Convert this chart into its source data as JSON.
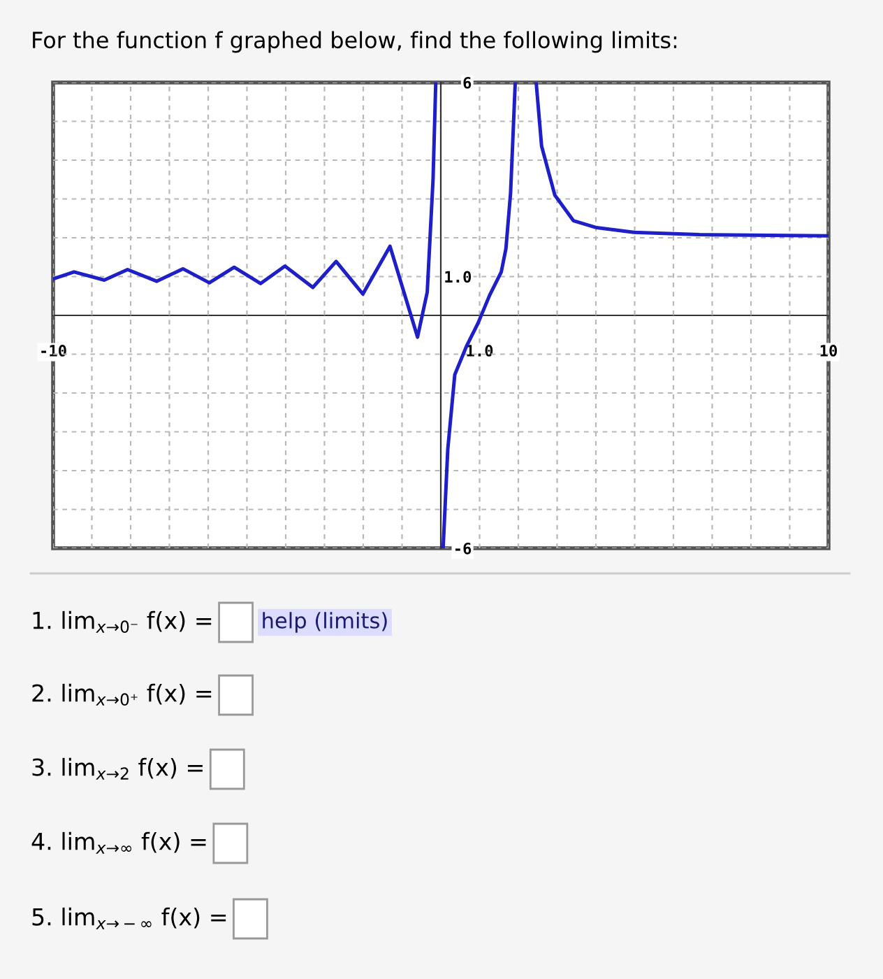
{
  "chart_data": {
    "type": "line",
    "title": "For the function f graphed below, find the following limits:",
    "series": [
      {
        "color": "#1f1fc8",
        "x": [
          -10,
          -9.46,
          -8.68,
          -8.08,
          -7.33,
          -6.65,
          -5.97,
          -5.33,
          -4.65,
          -4.02,
          -3.3,
          -2.7,
          -2.01,
          -1.31,
          -0.6,
          -0.35,
          -0.2,
          -0.13
        ],
        "values": [
          0.94,
          1.12,
          0.91,
          1.18,
          0.88,
          1.2,
          0.84,
          1.24,
          0.82,
          1.27,
          0.72,
          1.39,
          0.55,
          1.78,
          -0.56,
          0.6,
          3.5,
          6
        ]
      },
      {
        "color": "#1f1fc8",
        "x": [
          0.06,
          0.18,
          0.36,
          0.66,
          0.96,
          1.26,
          1.56,
          1.68,
          1.8,
          1.92
        ],
        "values": [
          -6,
          -3.45,
          -1.53,
          -0.8,
          -0.2,
          0.52,
          1.12,
          1.72,
          3.16,
          6
        ]
      },
      {
        "color": "#1f1fc8",
        "x": [
          2.46,
          2.6,
          2.94,
          3.42,
          4.02,
          4.98,
          6.67,
          10
        ],
        "values": [
          6,
          4.36,
          3.1,
          2.44,
          2.26,
          2.14,
          2.08,
          2.05
        ]
      }
    ],
    "xlim": [
      -10,
      10
    ],
    "ylim": [
      -6,
      6
    ],
    "xticks": [
      -10,
      {
        "value": -9,
        "label": null
      },
      {
        "value": -8,
        "label": null
      },
      {
        "value": -7,
        "label": null
      },
      {
        "value": -6,
        "label": null
      },
      {
        "value": -5,
        "label": null
      },
      {
        "value": -4,
        "label": null
      },
      {
        "value": -3,
        "label": null
      },
      {
        "value": -2,
        "label": null
      },
      {
        "value": -1,
        "label": null
      },
      {
        "value": 1,
        "label": "1.0"
      },
      {
        "value": 2,
        "label": null
      },
      {
        "value": 3,
        "label": null
      },
      {
        "value": 4,
        "label": null
      },
      {
        "value": 5,
        "label": null
      },
      {
        "value": 6,
        "label": null
      },
      {
        "value": 7,
        "label": null
      },
      {
        "value": 8,
        "label": null
      },
      {
        "value": 9,
        "label": null
      },
      10
    ],
    "yticks": [
      -6,
      {
        "value": -5,
        "label": null
      },
      {
        "value": -4,
        "label": null
      },
      {
        "value": -3,
        "label": null
      },
      {
        "value": -2,
        "label": null
      },
      {
        "value": -1,
        "label": null
      },
      {
        "value": 1,
        "label": "1.0"
      },
      {
        "value": 2,
        "label": null
      },
      {
        "value": 3,
        "label": null
      },
      {
        "value": 4,
        "label": null
      },
      {
        "value": 5,
        "label": null
      },
      6
    ],
    "grid": true,
    "line_style": "solid",
    "marker": "none",
    "annotations": [
      "1. lim$_{x→0⁻}$ f(x) =",
      "help (limits)",
      "2. lim$_{x→0⁺}$ f(x) =",
      "3. lim$_{x→2}$ f(x) =",
      "4. lim$_{x→∞}$ f(x) =",
      "5. lim$_{x→−∞}$ f(x) ="
    ]
  }
}
